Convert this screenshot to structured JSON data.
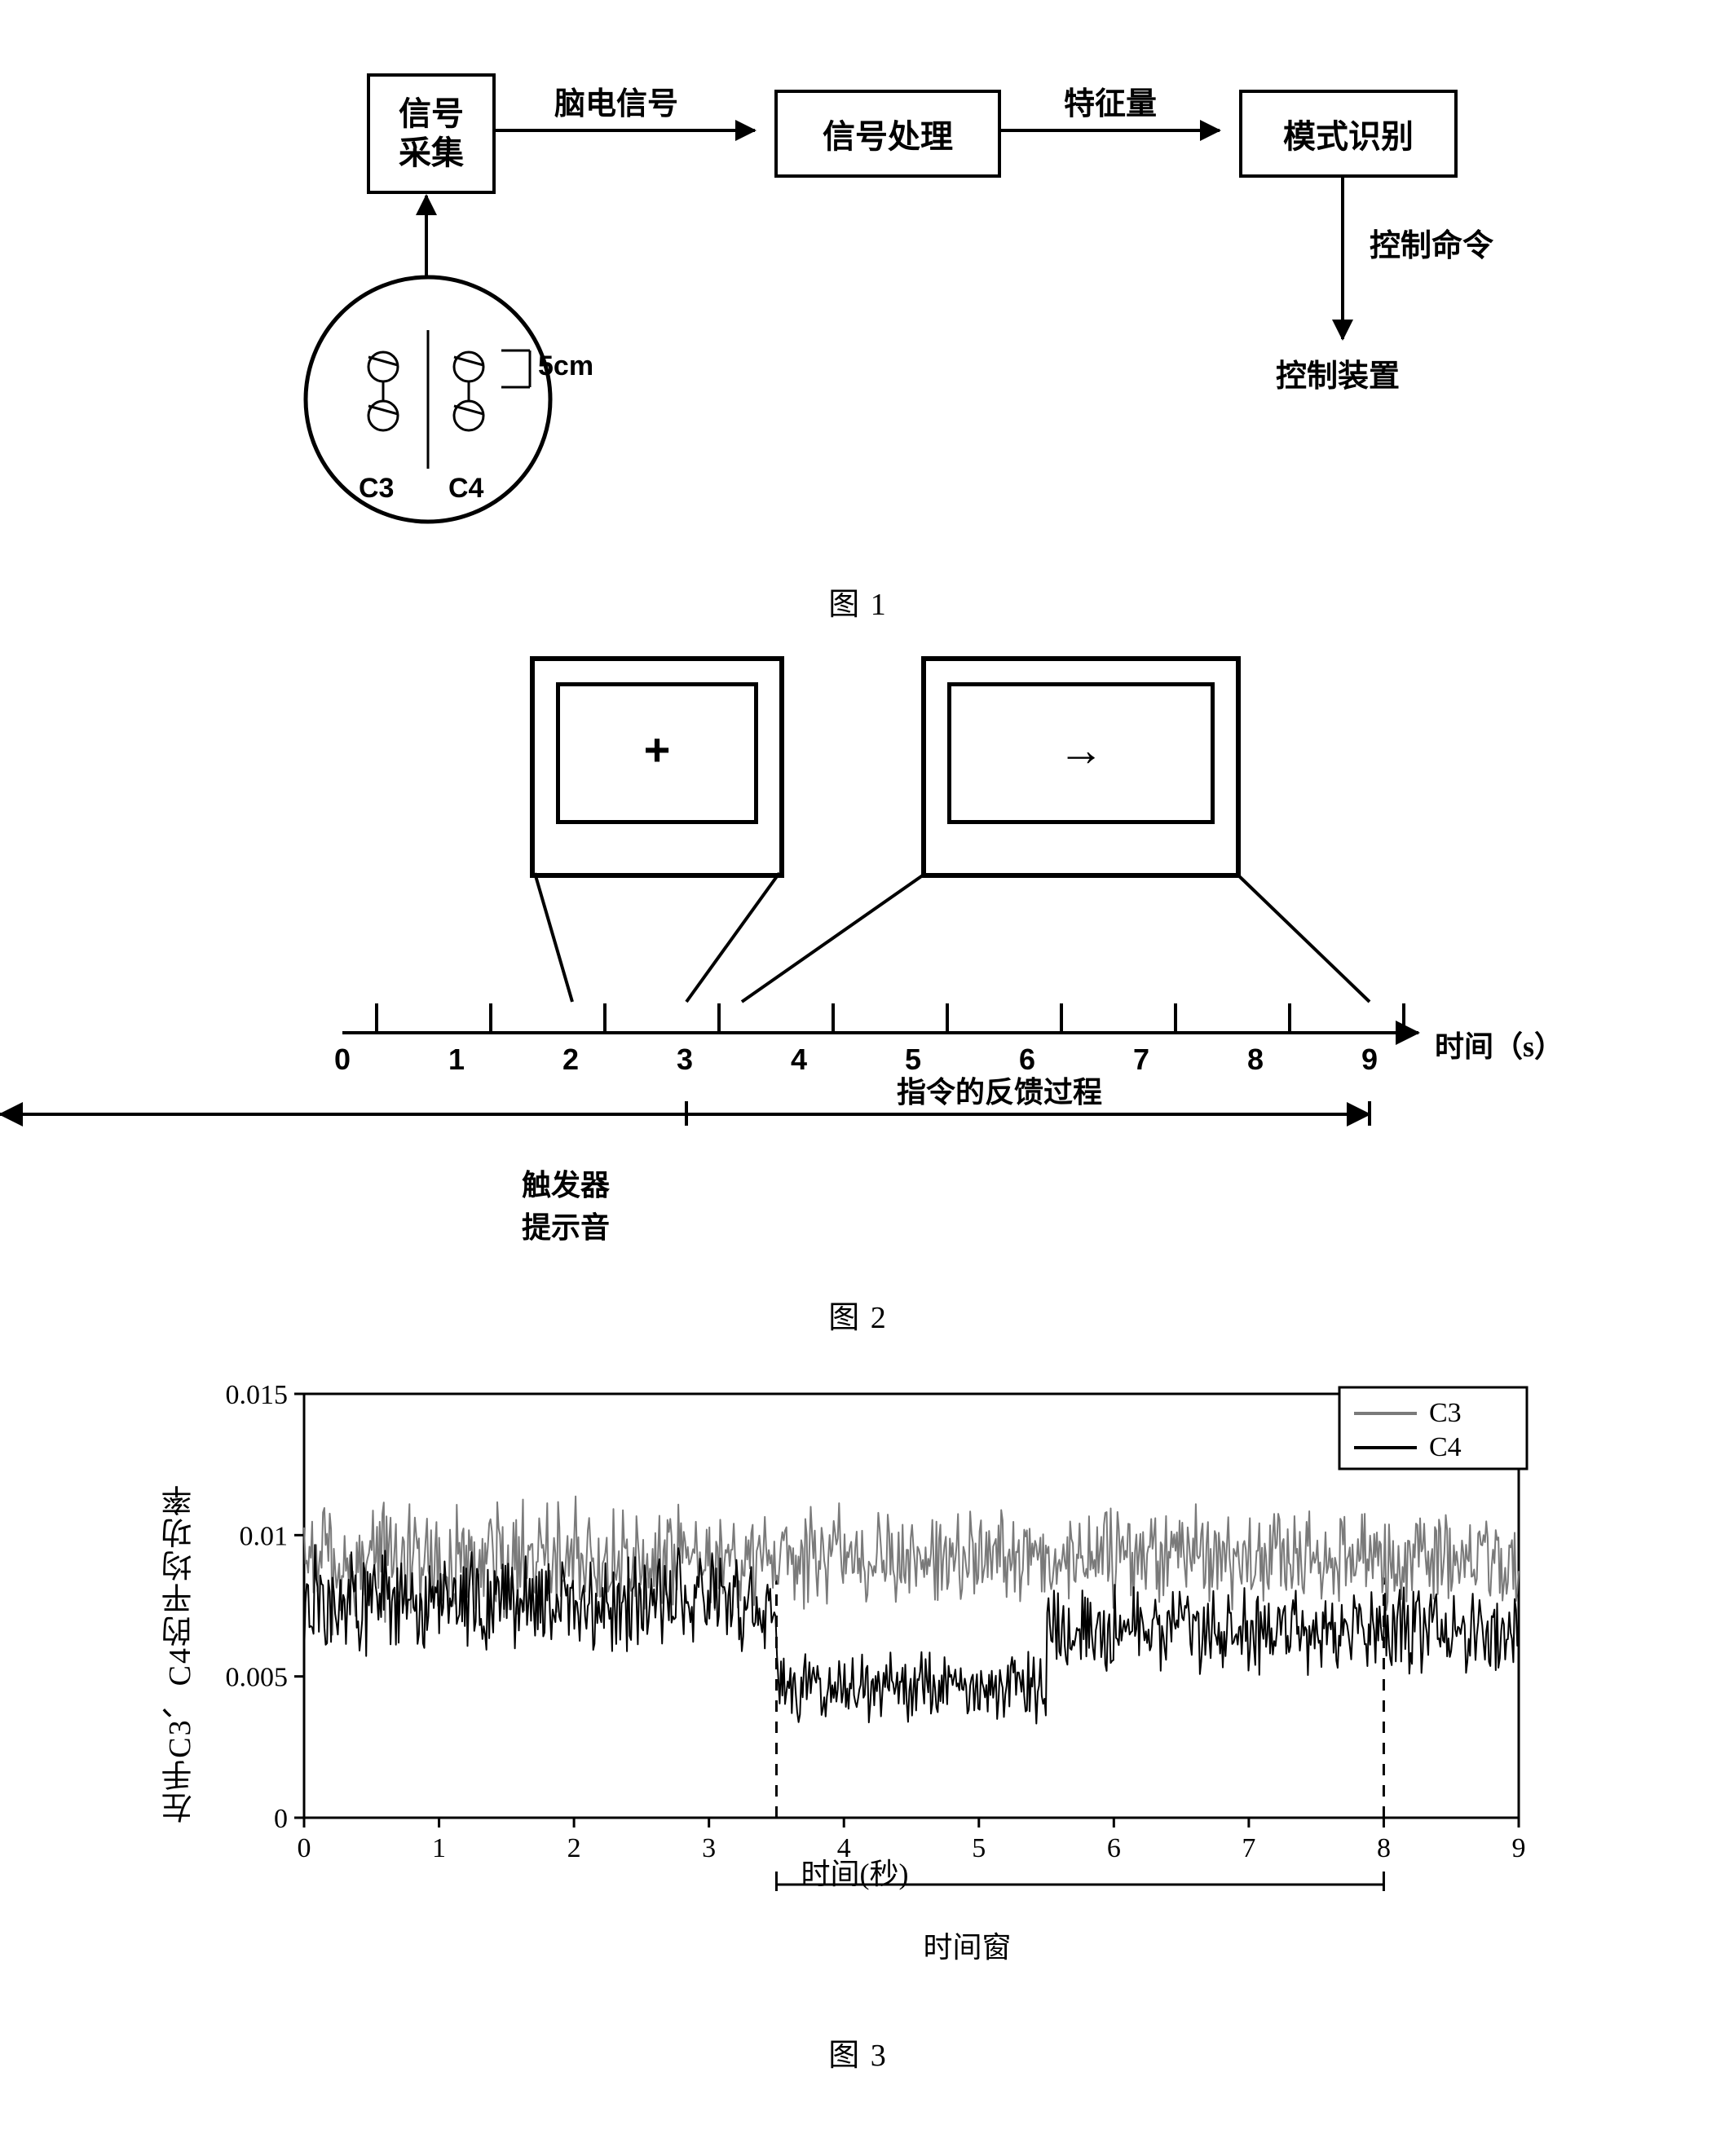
{
  "fig1": {
    "blocks": {
      "acq": "信号\n采集",
      "proc": "信号处理",
      "pat": "模式识别",
      "ctrl": "控制装置"
    },
    "arrow_labels": {
      "eeg": "脑电信号",
      "feature": "特征量",
      "cmd": "控制命令"
    },
    "head": {
      "c3": "C3",
      "c4": "C4",
      "dist": "5cm"
    },
    "caption": "图 1"
  },
  "fig2": {
    "ticks": [
      "0",
      "1",
      "2",
      "3",
      "4",
      "5",
      "6",
      "7",
      "8",
      "9"
    ],
    "axis_label": "时间（s）",
    "monitor1_symbol": "+",
    "monitor2_symbol": "→",
    "below_label": "触发器\n提示音",
    "feedback_label": "指令的反馈过程",
    "feedback_start_s": 3.0,
    "feedback_end_s": 9.0,
    "caption": "图 2"
  },
  "fig3": {
    "type": "line",
    "x_label": "时间(秒)",
    "y_label": "左手C3、C4的平均功率",
    "xlim": [
      0,
      9
    ],
    "ylim": [
      0,
      0.015
    ],
    "x_ticks": [
      0,
      1,
      2,
      3,
      4,
      5,
      6,
      7,
      8,
      9
    ],
    "y_ticks": [
      0,
      0.005,
      0.01,
      0.015
    ],
    "window": {
      "start": 3.5,
      "end": 8.0,
      "label": "时间窗"
    },
    "legend": [
      {
        "name": "C3",
        "color": "#7a7a7a"
      },
      {
        "name": "C4",
        "color": "#000000"
      }
    ],
    "colors": {
      "axes": "#000000",
      "grid": "#ffffff",
      "bg": "#ffffff",
      "c3": "#7a7a7a",
      "c4": "#000000",
      "dashed": "#000000"
    },
    "line_width": 2,
    "series": {
      "c3": {
        "mean": 0.0092,
        "amp_lo": 0.0012,
        "amp_hi": 0.0018,
        "seed": 11
      },
      "c4": {
        "segments": [
          {
            "x0": 0.0,
            "x1": 3.5,
            "mean": 0.0076,
            "amp": 0.0014
          },
          {
            "x0": 3.5,
            "x1": 5.5,
            "mean": 0.0046,
            "amp": 0.001
          },
          {
            "x0": 5.5,
            "x1": 9.0,
            "mean": 0.0066,
            "amp": 0.0012
          }
        ],
        "seed": 37
      }
    },
    "caption": "图 3"
  }
}
